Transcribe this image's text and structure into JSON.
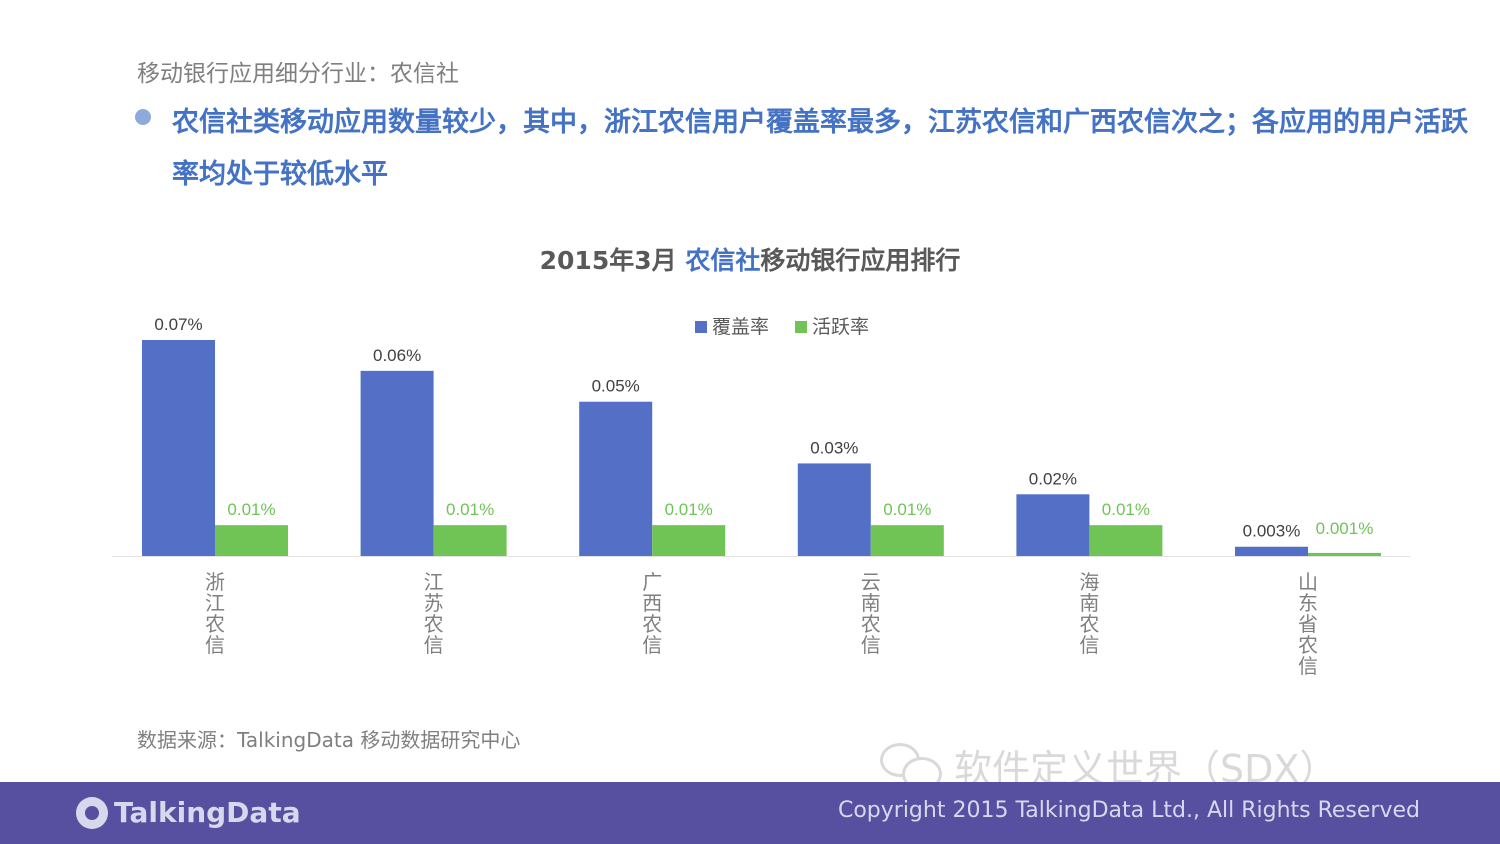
{
  "page": {
    "subtitle": "移动银行应用细分行业：农信社",
    "headline": "农信社类移动应用数量较少，其中，浙江农信用户覆盖率最多，江苏农信和广西农信次之；各应用的用户活跃率均处于较低水平",
    "source": "数据来源：TalkingData 移动数据研究中心",
    "watermark": "软件定义世界（SDX）",
    "footer_logo": "TalkingData",
    "copyright": "Copyright 2015 TalkingData Ltd., All Rights Reserved"
  },
  "chart_title": {
    "prefix": "2015年3月 ",
    "highlight": "农信社",
    "suffix": "移动银行应用排行"
  },
  "colors": {
    "coverage": "#5470c6",
    "activity": "#70c455",
    "headline": "#4472c4"
  },
  "chart_data": {
    "type": "bar",
    "title": "2015年3月 农信社移动银行应用排行",
    "categories": [
      "浙江农信",
      "江苏农信",
      "广西农信",
      "云南农信",
      "海南农信",
      "山东省农信"
    ],
    "series": [
      {
        "name": "覆盖率",
        "values": [
          0.07,
          0.06,
          0.05,
          0.03,
          0.02,
          0.003
        ],
        "labels": [
          "0.07%",
          "0.06%",
          "0.05%",
          "0.03%",
          "0.02%",
          "0.003%"
        ]
      },
      {
        "name": "活跃率",
        "values": [
          0.01,
          0.01,
          0.01,
          0.01,
          0.01,
          0.001
        ],
        "labels": [
          "0.01%",
          "0.01%",
          "0.01%",
          "0.01%",
          "0.01%",
          "0.001%"
        ]
      }
    ],
    "unit": "%",
    "ylim": [
      0,
      0.07
    ],
    "legend_position": "top-center",
    "grid": false
  }
}
